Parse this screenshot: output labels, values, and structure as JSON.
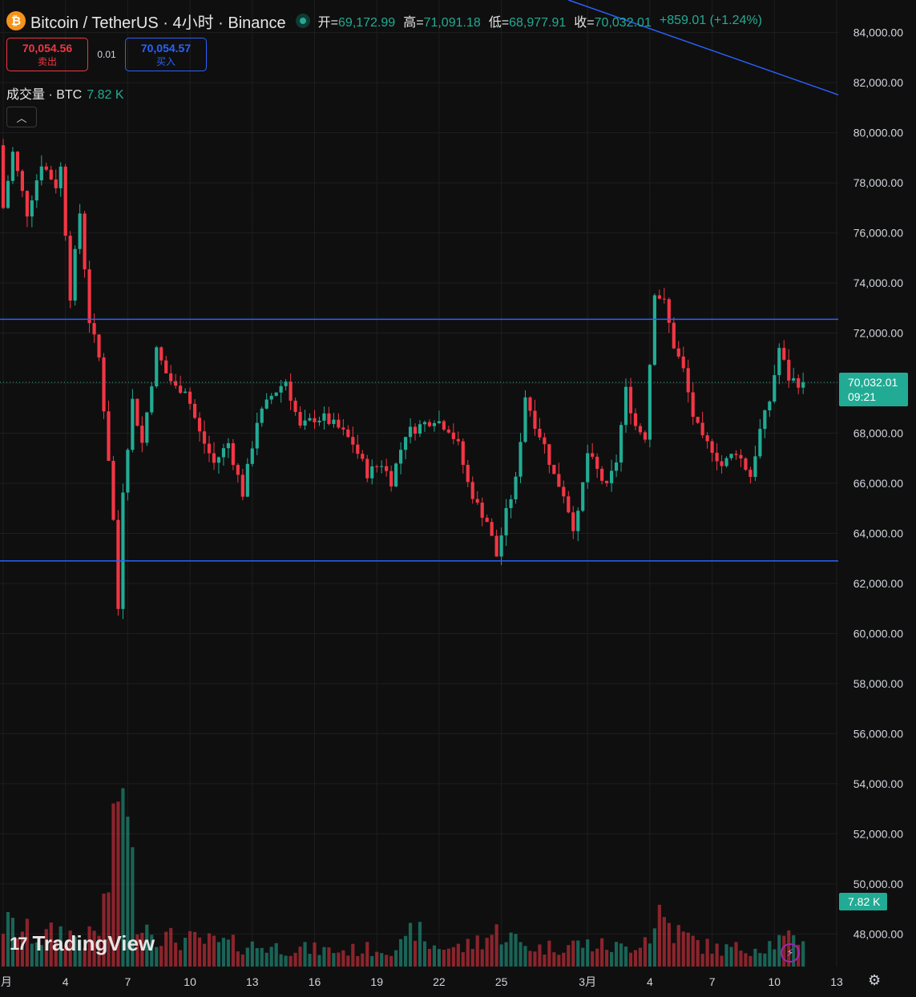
{
  "header": {
    "title": "Bitcoin / TetherUS · 4小时 · Binance",
    "coin_icon": "bitcoin-icon",
    "open_label": "开=",
    "open": "69,172.99",
    "high_label": "高=",
    "high": "71,091.18",
    "low_label": "低=",
    "low": "68,977.91",
    "close_label": "收=",
    "close": "70,032.01",
    "change": "+859.01 (+1.24%)"
  },
  "trade": {
    "sell_price": "70,054.56",
    "sell_label": "卖出",
    "spread": "0.01",
    "buy_price": "70,054.57",
    "buy_label": "买入"
  },
  "volume_legend": {
    "label": "成交量 · BTC",
    "value": "7.82 K"
  },
  "logo": {
    "text": "TradingView"
  },
  "colors": {
    "up": "#22ab94",
    "down": "#f23645",
    "lines": "#2962ff",
    "background": "#0f0f0f",
    "grid": "#1e1e1e"
  },
  "chart_data": {
    "type": "candlestick",
    "symbol": "BTCUSDT",
    "interval": "4小时",
    "y_ticks": [
      "84,000.00",
      "82,000.00",
      "80,000.00",
      "78,000.00",
      "76,000.00",
      "74,000.00",
      "72,000.00",
      "70,000.00",
      "68,000.00",
      "66,000.00",
      "64,000.00",
      "62,000.00",
      "60,000.00",
      "58,000.00",
      "56,000.00",
      "54,000.00",
      "52,000.00",
      "50,000.00",
      "48,000.00"
    ],
    "y_tick_values": [
      84000,
      82000,
      80000,
      78000,
      76000,
      74000,
      72000,
      70000,
      68000,
      66000,
      64000,
      62000,
      60000,
      58000,
      56000,
      54000,
      52000,
      50000,
      48000
    ],
    "ylim": [
      46700,
      85300
    ],
    "x_ticks": [
      "月",
      "4",
      "7",
      "10",
      "13",
      "16",
      "19",
      "22",
      "25",
      "3月",
      "4",
      "7",
      "10",
      "13"
    ],
    "x_tick_bars": [
      0,
      13,
      26,
      39,
      52,
      65,
      78,
      91,
      104,
      122,
      135,
      148,
      161,
      174
    ],
    "bar_count": 175,
    "last_bar": 167,
    "last_price": {
      "value": 70032.01,
      "label": "70,032.01",
      "countdown": "09:21"
    },
    "last_volume": {
      "value": 7.82,
      "label": "7.82 K"
    },
    "horizontal_lines": [
      72550,
      62900
    ],
    "trend_line": [
      [
        118,
        85300
      ],
      [
        179,
        81200
      ]
    ],
    "price_path": [
      [
        0,
        79500
      ],
      [
        1,
        77000
      ],
      [
        3,
        79200
      ],
      [
        6,
        76800
      ],
      [
        9,
        78800
      ],
      [
        12,
        77900
      ],
      [
        13,
        78600
      ],
      [
        15,
        73500
      ],
      [
        17,
        76800
      ],
      [
        19,
        72500
      ],
      [
        21,
        71000
      ],
      [
        23,
        67000
      ],
      [
        24,
        64500
      ],
      [
        25,
        61000
      ],
      [
        26,
        65800
      ],
      [
        28,
        69300
      ],
      [
        30,
        67600
      ],
      [
        33,
        71300
      ],
      [
        35,
        70400
      ],
      [
        37,
        69800
      ],
      [
        39,
        69800
      ],
      [
        42,
        68000
      ],
      [
        45,
        66800
      ],
      [
        48,
        67600
      ],
      [
        51,
        65600
      ],
      [
        54,
        68500
      ],
      [
        57,
        69500
      ],
      [
        60,
        70100
      ],
      [
        63,
        68200
      ],
      [
        66,
        68600
      ],
      [
        68,
        68600
      ],
      [
        71,
        68200
      ],
      [
        74,
        67600
      ],
      [
        77,
        66400
      ],
      [
        80,
        66800
      ],
      [
        82,
        66100
      ],
      [
        85,
        68000
      ],
      [
        88,
        68300
      ],
      [
        91,
        68600
      ],
      [
        94,
        68200
      ],
      [
        96,
        67500
      ],
      [
        98,
        66000
      ],
      [
        100,
        65100
      ],
      [
        102,
        64500
      ],
      [
        104,
        63100
      ],
      [
        106,
        64800
      ],
      [
        108,
        66100
      ],
      [
        110,
        69500
      ],
      [
        112,
        68400
      ],
      [
        114,
        67500
      ],
      [
        116,
        66300
      ],
      [
        118,
        65600
      ],
      [
        120,
        64300
      ],
      [
        121,
        64700
      ],
      [
        123,
        67200
      ],
      [
        125,
        66500
      ],
      [
        127,
        65800
      ],
      [
        129,
        66900
      ],
      [
        131,
        69700
      ],
      [
        133,
        68300
      ],
      [
        135,
        67900
      ],
      [
        137,
        73700
      ],
      [
        139,
        73200
      ],
      [
        141,
        71500
      ],
      [
        143,
        70500
      ],
      [
        145,
        68700
      ],
      [
        147,
        67700
      ],
      [
        149,
        67400
      ],
      [
        151,
        66700
      ],
      [
        154,
        67300
      ],
      [
        157,
        66300
      ],
      [
        159,
        68100
      ],
      [
        161,
        69300
      ],
      [
        163,
        71400
      ],
      [
        165,
        70200
      ],
      [
        167,
        70032
      ]
    ],
    "volume_profile": [
      [
        0,
        3
      ],
      [
        4,
        2.5
      ],
      [
        8,
        2
      ],
      [
        12,
        2.5
      ],
      [
        16,
        2
      ],
      [
        18,
        2
      ],
      [
        20,
        2.5
      ],
      [
        22,
        6
      ],
      [
        23,
        8
      ],
      [
        24,
        12
      ],
      [
        25,
        16
      ],
      [
        26,
        9
      ],
      [
        28,
        4
      ],
      [
        30,
        3
      ],
      [
        34,
        2
      ],
      [
        40,
        1.8
      ],
      [
        50,
        1.5
      ],
      [
        60,
        1.3
      ],
      [
        70,
        1.1
      ],
      [
        80,
        1.3
      ],
      [
        84,
        1.5
      ],
      [
        86,
        3
      ],
      [
        88,
        1.5
      ],
      [
        96,
        1.3
      ],
      [
        100,
        2
      ],
      [
        104,
        2.5
      ],
      [
        108,
        1.6
      ],
      [
        112,
        1.3
      ],
      [
        120,
        1.6
      ],
      [
        130,
        1.3
      ],
      [
        136,
        2.5
      ],
      [
        137,
        4
      ],
      [
        138,
        3.5
      ],
      [
        140,
        2.5
      ],
      [
        146,
        1.5
      ],
      [
        150,
        1.2
      ],
      [
        158,
        1.4
      ],
      [
        162,
        1.8
      ],
      [
        166,
        1.8
      ],
      [
        167,
        2.2
      ]
    ],
    "volume_max": 17
  }
}
